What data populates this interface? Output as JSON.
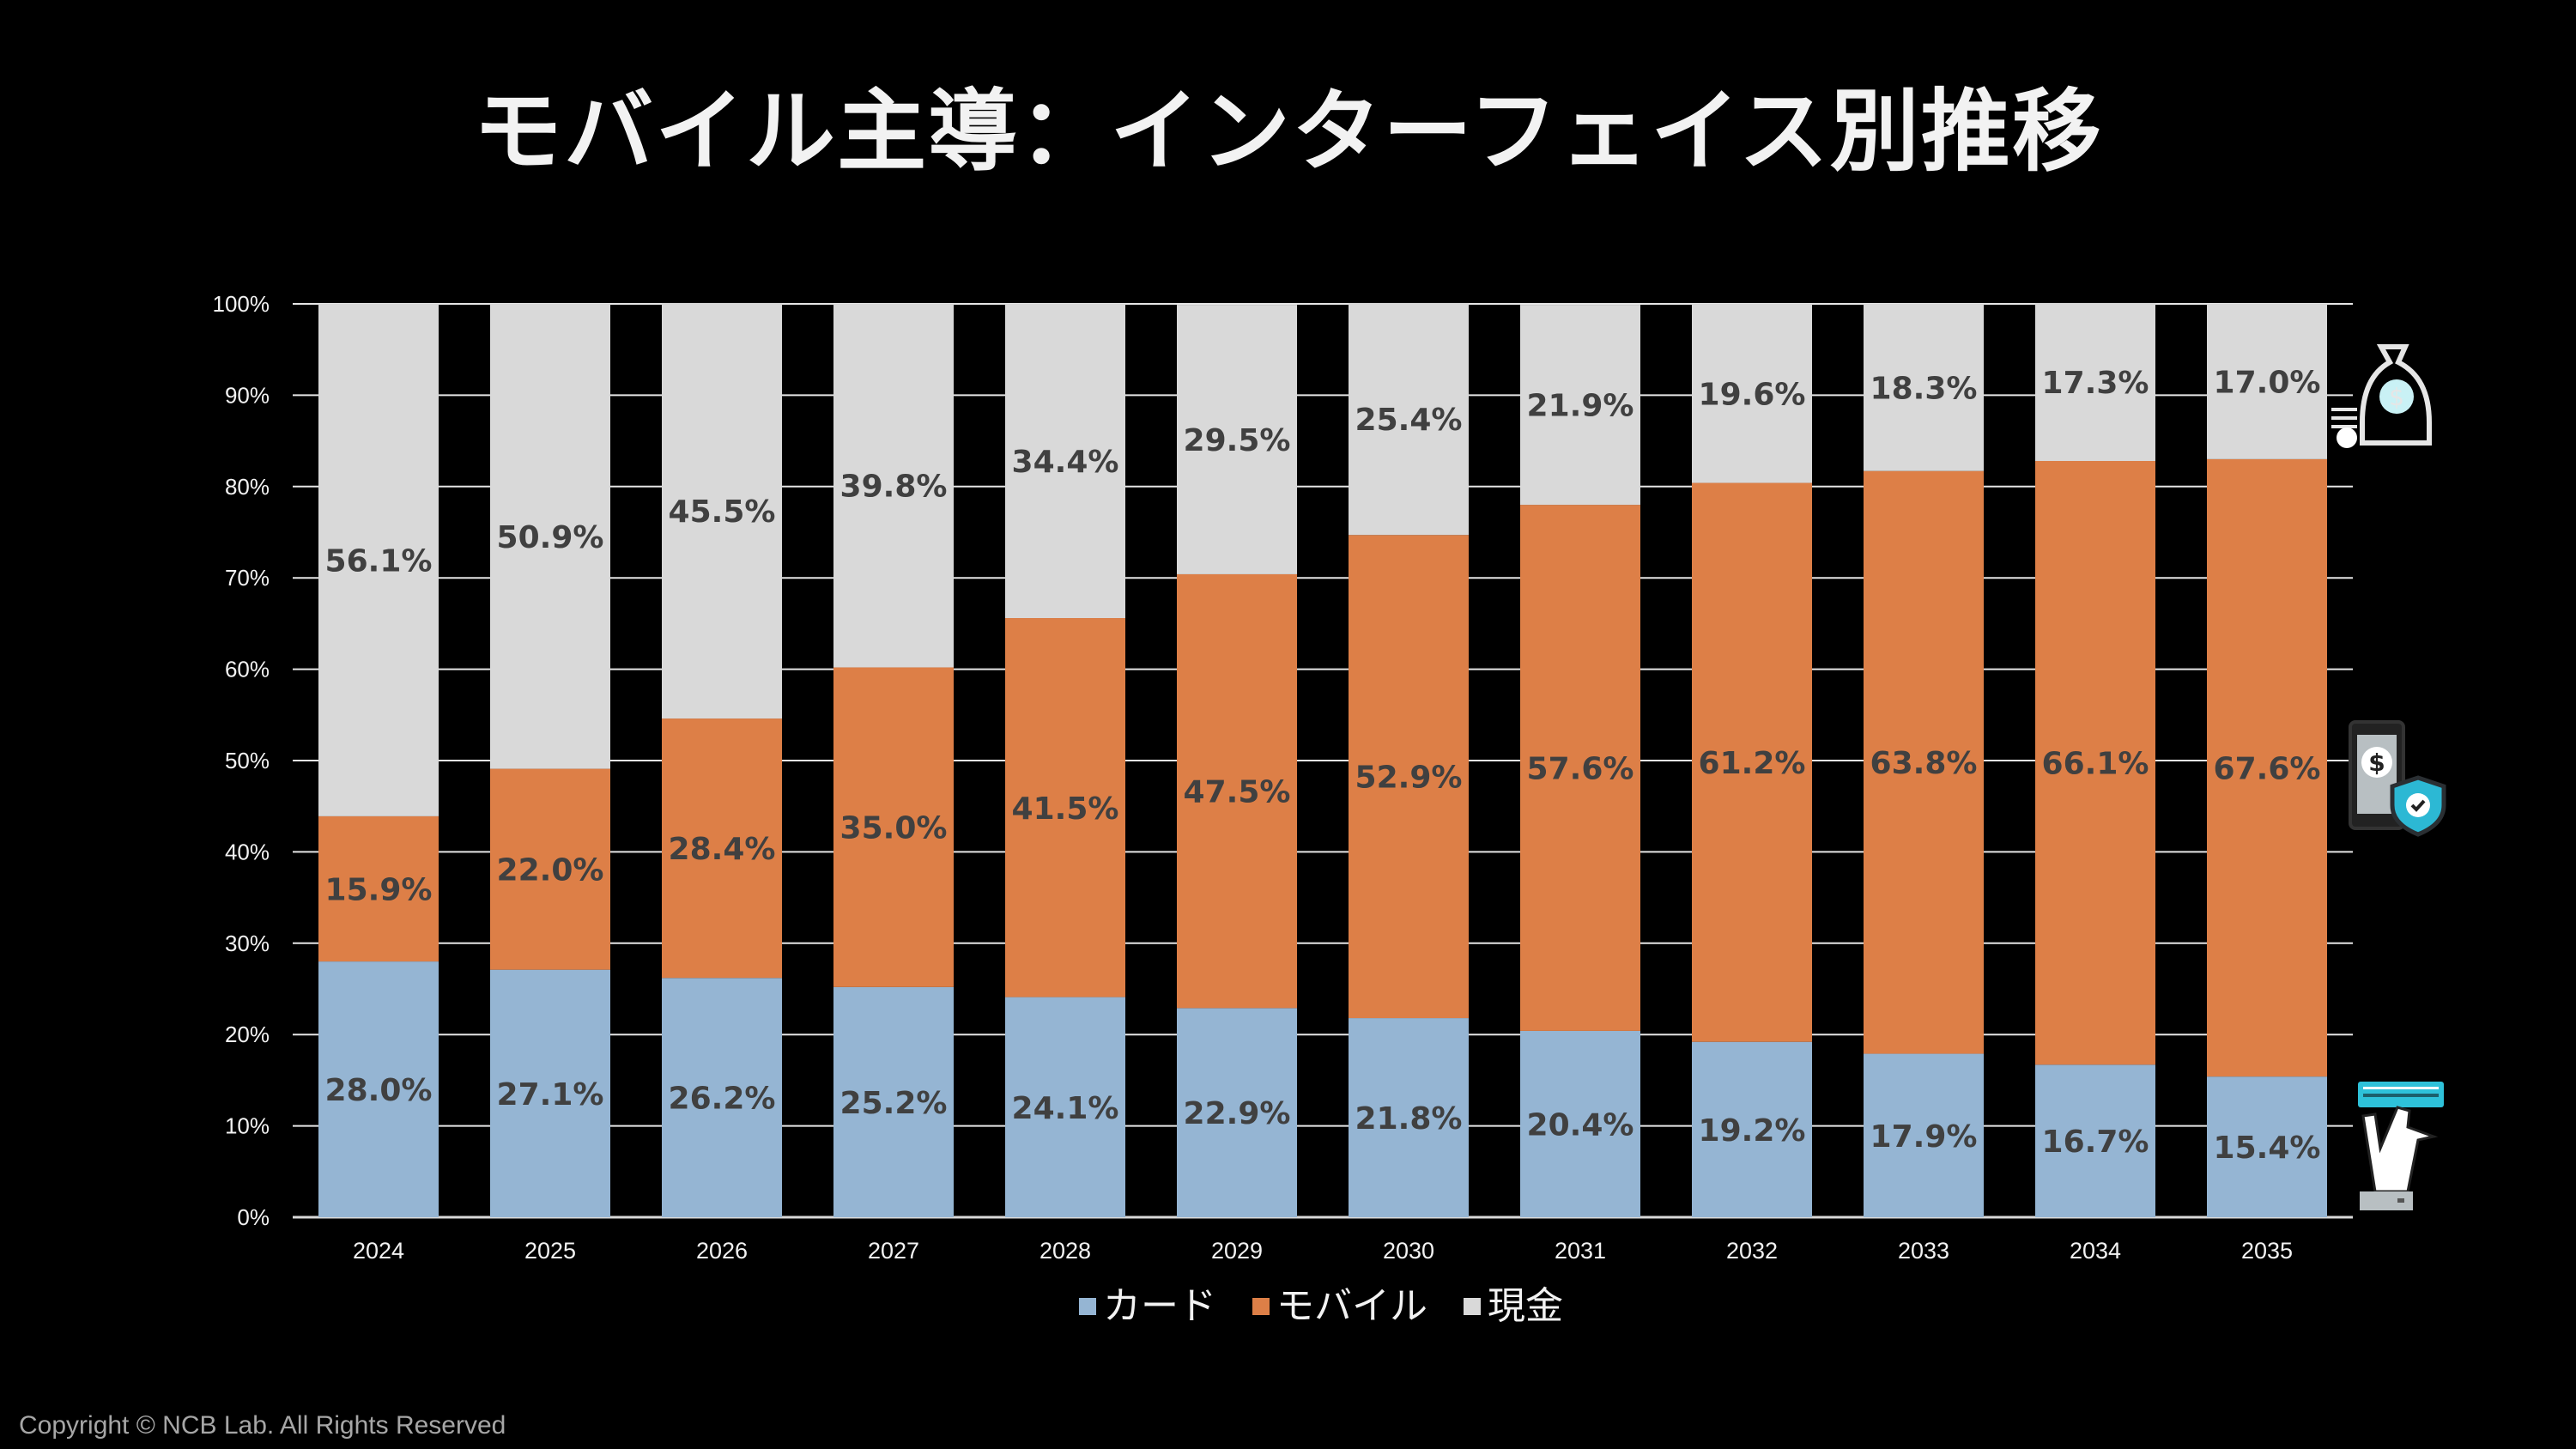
{
  "title": "モバイル主導：インターフェイス別推移",
  "copyright": "Copyright © NCB Lab. All Rights Reserved",
  "icons": [
    "money-bag-icon",
    "mobile-payment-shield-icon",
    "card-hand-icon"
  ],
  "chart_data": {
    "type": "bar",
    "stacked": true,
    "percent": true,
    "title": "モバイル主導：インターフェイス別推移",
    "xlabel": "",
    "ylabel": "",
    "ylim": [
      0,
      100
    ],
    "yticks": [
      "0%",
      "10%",
      "20%",
      "30%",
      "40%",
      "50%",
      "60%",
      "70%",
      "80%",
      "90%",
      "100%"
    ],
    "grid": true,
    "legend": "bottom",
    "categories": [
      "2024",
      "2025",
      "2026",
      "2027",
      "2028",
      "2029",
      "2030",
      "2031",
      "2032",
      "2033",
      "2034",
      "2035"
    ],
    "series": [
      {
        "name": "カード",
        "color": "#95b5d3",
        "values": [
          28.0,
          27.1,
          26.2,
          25.2,
          24.1,
          22.9,
          21.8,
          20.4,
          19.2,
          17.9,
          16.7,
          15.4
        ]
      },
      {
        "name": "モバイル",
        "color": "#dd7f47",
        "values": [
          15.9,
          22.0,
          28.4,
          35.0,
          41.5,
          47.5,
          52.9,
          57.6,
          61.2,
          63.8,
          66.1,
          67.6
        ]
      },
      {
        "name": "現金",
        "color": "#d9d9d9",
        "values": [
          56.1,
          50.9,
          45.5,
          39.8,
          34.4,
          29.5,
          25.4,
          21.9,
          19.6,
          18.3,
          17.3,
          17.0
        ]
      }
    ]
  }
}
